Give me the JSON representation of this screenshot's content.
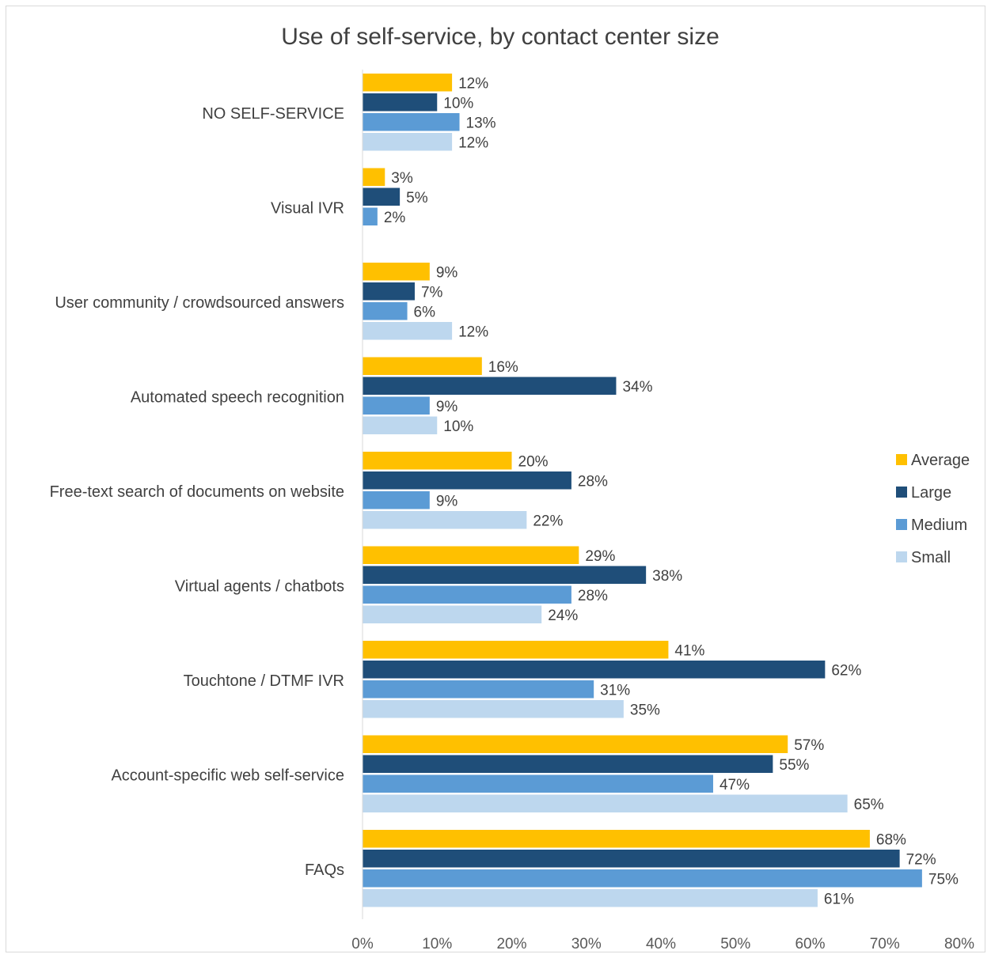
{
  "chart_data": {
    "type": "bar",
    "orientation": "horizontal",
    "title": "Use of self-service, by contact center size",
    "xlabel": "",
    "ylabel": "",
    "xlim": [
      0,
      80
    ],
    "x_ticks": [
      "0%",
      "10%",
      "20%",
      "30%",
      "40%",
      "50%",
      "60%",
      "70%",
      "80%"
    ],
    "grid": false,
    "legend_position": "right",
    "categories": [
      "NO SELF-SERVICE",
      "Visual IVR",
      "User community / crowdsourced answers",
      "Automated speech recognition",
      "Free-text search of documents on website",
      "Virtual agents / chatbots",
      "Touchtone / DTMF IVR",
      "Account-specific web self-service",
      "FAQs"
    ],
    "series": [
      {
        "name": "Average",
        "color": "#FFC000",
        "values": [
          12,
          3,
          9,
          16,
          20,
          29,
          41,
          57,
          68
        ]
      },
      {
        "name": "Large",
        "color": "#1F4E79",
        "values": [
          10,
          5,
          7,
          34,
          28,
          38,
          62,
          55,
          72
        ]
      },
      {
        "name": "Medium",
        "color": "#5B9BD5",
        "values": [
          13,
          2,
          6,
          9,
          9,
          28,
          31,
          47,
          75
        ]
      },
      {
        "name": "Small",
        "color": "#BDD7EE",
        "values": [
          12,
          null,
          12,
          10,
          22,
          24,
          35,
          65,
          61
        ]
      }
    ],
    "value_suffix": "%"
  }
}
